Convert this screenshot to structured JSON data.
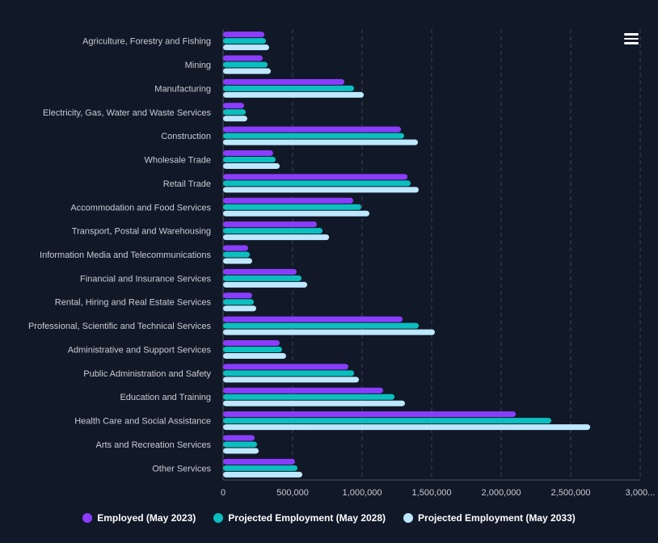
{
  "chart_data": {
    "type": "bar",
    "orientation": "horizontal",
    "title": "",
    "xlabel": "",
    "ylabel": "",
    "xlim": [
      0,
      3000000
    ],
    "xticks": [
      "0",
      "500,000",
      "1,000,000",
      "1,500,000",
      "2,000,000",
      "2,500,000",
      "3,000..."
    ],
    "grid": true,
    "legend_position": "bottom",
    "categories": [
      "Agriculture, Forestry and Fishing",
      "Mining",
      "Manufacturing",
      "Electricity, Gas, Water and Waste Services",
      "Construction",
      "Wholesale Trade",
      "Retail Trade",
      "Accommodation and Food Services",
      "Transport, Postal and Warehousing",
      "Information Media and Telecommunications",
      "Financial and Insurance Services",
      "Rental, Hiring and Real Estate Services",
      "Professional, Scientific and Technical Services",
      "Administrative and Support Services",
      "Public Administration and Safety",
      "Education and Training",
      "Health Care and Social Assistance",
      "Arts and Recreation Services",
      "Other Services"
    ],
    "series": [
      {
        "name": "Employed (May 2023)",
        "color": "#8b3dff",
        "values": [
          297000,
          285000,
          872000,
          151000,
          1279000,
          360000,
          1326000,
          936000,
          674000,
          180000,
          529000,
          209000,
          1291000,
          407000,
          901000,
          1151000,
          2105000,
          227000,
          517000
        ]
      },
      {
        "name": "Projected Employment (May 2028)",
        "color": "#0abfbf",
        "values": [
          308000,
          320000,
          942000,
          163000,
          1302000,
          378000,
          1349000,
          994000,
          715000,
          192000,
          564000,
          221000,
          1407000,
          424000,
          942000,
          1233000,
          2360000,
          244000,
          535000
        ]
      },
      {
        "name": "Projected Employment (May 2033)",
        "color": "#bde8ff",
        "values": [
          331000,
          343000,
          1012000,
          174000,
          1401000,
          407000,
          1407000,
          1052000,
          762000,
          209000,
          605000,
          238000,
          1523000,
          453000,
          977000,
          1308000,
          2640000,
          256000,
          570000
        ]
      }
    ]
  },
  "menu_icon": "hamburger-menu-icon"
}
